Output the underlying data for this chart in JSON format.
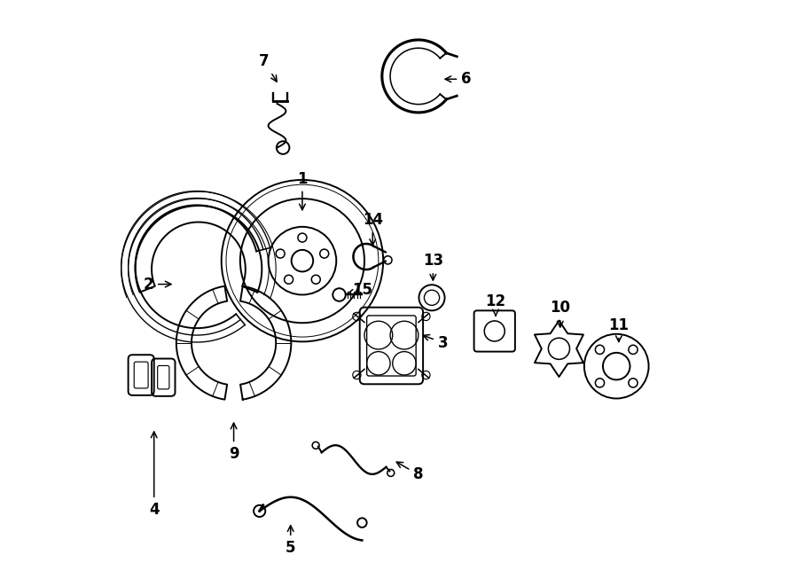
{
  "bg_color": "#ffffff",
  "line_color": "#000000",
  "fig_width": 9.0,
  "fig_height": 6.61,
  "dpi": 100,
  "label_fontsize": 12,
  "lw": 1.4,
  "parts_labels": {
    "1": [
      0.335,
      0.695,
      0.335,
      0.635
    ],
    "2": [
      0.072,
      0.515,
      0.118,
      0.515
    ],
    "3": [
      0.575,
      0.415,
      0.535,
      0.43
    ],
    "4": [
      0.082,
      0.13,
      0.082,
      0.27
    ],
    "5": [
      0.315,
      0.065,
      0.315,
      0.11
    ],
    "6": [
      0.615,
      0.865,
      0.572,
      0.865
    ],
    "7": [
      0.27,
      0.895,
      0.295,
      0.855
    ],
    "8": [
      0.533,
      0.19,
      0.49,
      0.215
    ],
    "9": [
      0.218,
      0.225,
      0.218,
      0.285
    ],
    "10": [
      0.775,
      0.475,
      0.775,
      0.435
    ],
    "11": [
      0.875,
      0.445,
      0.875,
      0.41
    ],
    "12": [
      0.665,
      0.485,
      0.665,
      0.455
    ],
    "13": [
      0.558,
      0.555,
      0.558,
      0.515
    ],
    "14": [
      0.455,
      0.625,
      0.455,
      0.575
    ],
    "15": [
      0.438,
      0.505,
      0.41,
      0.498
    ]
  }
}
